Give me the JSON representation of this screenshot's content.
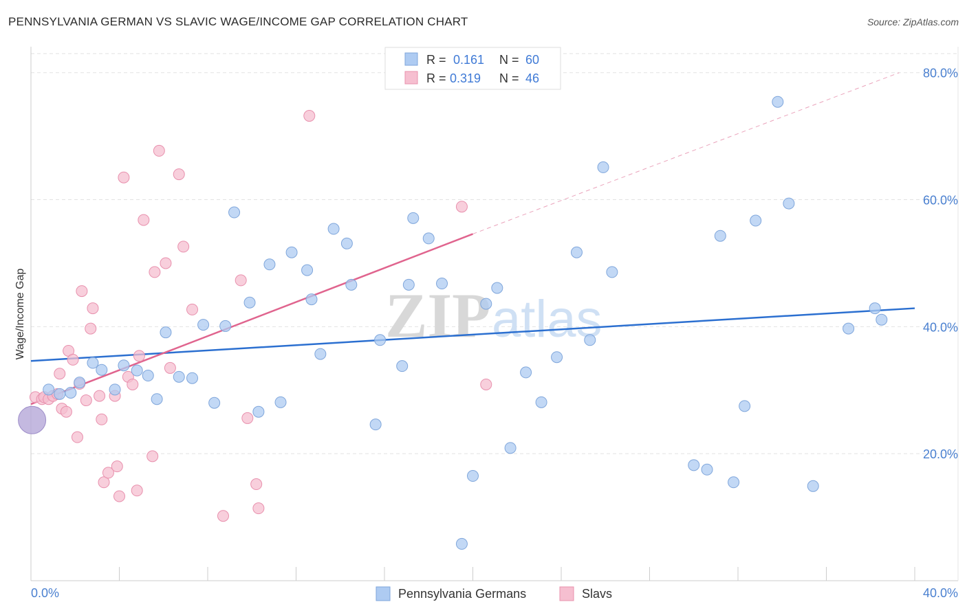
{
  "title": "PENNSYLVANIA GERMAN VS SLAVIC WAGE/INCOME GAP CORRELATION CHART",
  "source": "Source: ZipAtlas.com",
  "watermark": {
    "zip": "ZIP",
    "atlas": "atlas"
  },
  "colors": {
    "blue_fill": "#aecbf2",
    "blue_stroke": "#7fa6db",
    "blue_line": "#2b6fd0",
    "pink_fill": "#f6bfd0",
    "pink_stroke": "#e890ad",
    "pink_line": "#e0648e",
    "purple_fill": "#b5a8d8",
    "axis_label": "#4a80d0",
    "grid": "#e2e2e2"
  },
  "stats_legend": [
    {
      "series": "Pennsylvania Germans",
      "r_label": "R =",
      "r_value": "0.161",
      "n_label": "N =",
      "n_value": "60"
    },
    {
      "series": "Slavs",
      "r_label": "R =",
      "r_value": "0.319",
      "n_label": "N =",
      "n_value": "46"
    }
  ],
  "chart_data": {
    "type": "scatter",
    "title": "PENNSYLVANIA GERMAN VS SLAVIC WAGE/INCOME GAP CORRELATION CHART",
    "xlabel": "",
    "ylabel": "Wage/Income Gap",
    "xlim": [
      0,
      40
    ],
    "ylim": [
      0,
      83
    ],
    "x_tick_labels": [
      "0.0%",
      "40.0%"
    ],
    "x_tick_values": [
      0,
      40
    ],
    "x_minor_ticks": [
      0,
      4,
      8,
      12,
      16,
      20,
      24,
      28,
      32,
      36,
      40
    ],
    "y_tick_labels": [
      "20.0%",
      "40.0%",
      "60.0%",
      "80.0%"
    ],
    "y_tick_values": [
      20,
      40,
      60,
      80
    ],
    "grid": true,
    "legend_position": "bottom-center",
    "series": [
      {
        "name": "Pennsylvania Germans",
        "color": "#aecbf2",
        "trend": {
          "x": [
            0,
            40
          ],
          "y": [
            34.6,
            42.9
          ]
        },
        "points": [
          [
            0.8,
            30.1
          ],
          [
            1.3,
            29.4
          ],
          [
            1.8,
            29.6
          ],
          [
            2.2,
            31.2
          ],
          [
            2.8,
            34.3
          ],
          [
            3.2,
            33.2
          ],
          [
            3.8,
            30.1
          ],
          [
            4.2,
            33.9
          ],
          [
            4.8,
            33.1
          ],
          [
            5.3,
            32.3
          ],
          [
            5.7,
            28.6
          ],
          [
            6.1,
            39.1
          ],
          [
            6.7,
            32.1
          ],
          [
            7.3,
            31.9
          ],
          [
            7.8,
            40.3
          ],
          [
            8.3,
            28.0
          ],
          [
            8.8,
            40.1
          ],
          [
            9.2,
            58.0
          ],
          [
            9.9,
            43.8
          ],
          [
            10.3,
            26.6
          ],
          [
            10.8,
            49.8
          ],
          [
            11.3,
            28.1
          ],
          [
            11.8,
            51.7
          ],
          [
            12.5,
            48.9
          ],
          [
            12.7,
            44.3
          ],
          [
            13.1,
            35.7
          ],
          [
            13.7,
            55.4
          ],
          [
            14.3,
            53.1
          ],
          [
            14.5,
            46.6
          ],
          [
            15.6,
            24.6
          ],
          [
            15.8,
            37.9
          ],
          [
            16.8,
            33.8
          ],
          [
            17.1,
            46.6
          ],
          [
            17.3,
            57.1
          ],
          [
            18.0,
            53.9
          ],
          [
            18.6,
            46.8
          ],
          [
            19.5,
            5.8
          ],
          [
            20.0,
            16.5
          ],
          [
            20.6,
            43.6
          ],
          [
            21.1,
            46.1
          ],
          [
            21.7,
            20.9
          ],
          [
            22.4,
            32.8
          ],
          [
            23.1,
            28.1
          ],
          [
            23.8,
            35.2
          ],
          [
            24.7,
            51.7
          ],
          [
            25.3,
            37.9
          ],
          [
            25.9,
            65.1
          ],
          [
            26.3,
            48.6
          ],
          [
            30.0,
            18.2
          ],
          [
            30.6,
            17.5
          ],
          [
            31.2,
            54.3
          ],
          [
            31.8,
            15.5
          ],
          [
            32.3,
            27.5
          ],
          [
            32.8,
            56.7
          ],
          [
            33.8,
            75.4
          ],
          [
            34.3,
            59.4
          ],
          [
            35.4,
            14.9
          ],
          [
            37.0,
            39.7
          ],
          [
            38.2,
            42.9
          ],
          [
            38.5,
            41.1
          ]
        ]
      },
      {
        "name": "Slavs",
        "color": "#f6bfd0",
        "trend": {
          "x": [
            0,
            20
          ],
          "y": [
            27.8,
            54.6
          ]
        },
        "trend_extension": {
          "x": [
            20,
            39.3
          ],
          "y": [
            54.6,
            80.0
          ]
        },
        "points": [
          [
            0.2,
            28.9
          ],
          [
            0.5,
            28.6
          ],
          [
            0.6,
            28.9
          ],
          [
            0.8,
            28.6
          ],
          [
            1.0,
            29.1
          ],
          [
            1.2,
            29.4
          ],
          [
            1.3,
            32.6
          ],
          [
            1.4,
            27.1
          ],
          [
            1.6,
            26.6
          ],
          [
            1.7,
            36.2
          ],
          [
            1.9,
            34.8
          ],
          [
            2.1,
            22.6
          ],
          [
            2.2,
            31.0
          ],
          [
            2.3,
            45.6
          ],
          [
            2.5,
            28.4
          ],
          [
            2.7,
            39.7
          ],
          [
            2.8,
            42.9
          ],
          [
            3.1,
            29.1
          ],
          [
            3.2,
            25.4
          ],
          [
            3.3,
            15.5
          ],
          [
            3.5,
            17.0
          ],
          [
            3.8,
            29.1
          ],
          [
            3.9,
            18.0
          ],
          [
            4.0,
            13.3
          ],
          [
            4.2,
            63.5
          ],
          [
            4.4,
            32.1
          ],
          [
            4.6,
            30.9
          ],
          [
            4.8,
            14.2
          ],
          [
            4.9,
            35.4
          ],
          [
            5.1,
            56.8
          ],
          [
            5.5,
            19.6
          ],
          [
            5.6,
            48.6
          ],
          [
            5.8,
            67.7
          ],
          [
            6.1,
            50.0
          ],
          [
            6.3,
            33.5
          ],
          [
            6.7,
            64.0
          ],
          [
            6.9,
            52.6
          ],
          [
            7.3,
            42.7
          ],
          [
            8.7,
            10.2
          ],
          [
            9.5,
            47.3
          ],
          [
            9.8,
            25.6
          ],
          [
            10.2,
            15.2
          ],
          [
            10.3,
            11.4
          ],
          [
            12.6,
            73.2
          ],
          [
            19.5,
            58.9
          ],
          [
            20.6,
            30.9
          ]
        ]
      },
      {
        "name": "Overlap (both series)",
        "color": "#b5a8d8",
        "points": [
          [
            0.05,
            25.3
          ]
        ],
        "note": "large marker at the origin edge where both series overlap"
      }
    ]
  }
}
